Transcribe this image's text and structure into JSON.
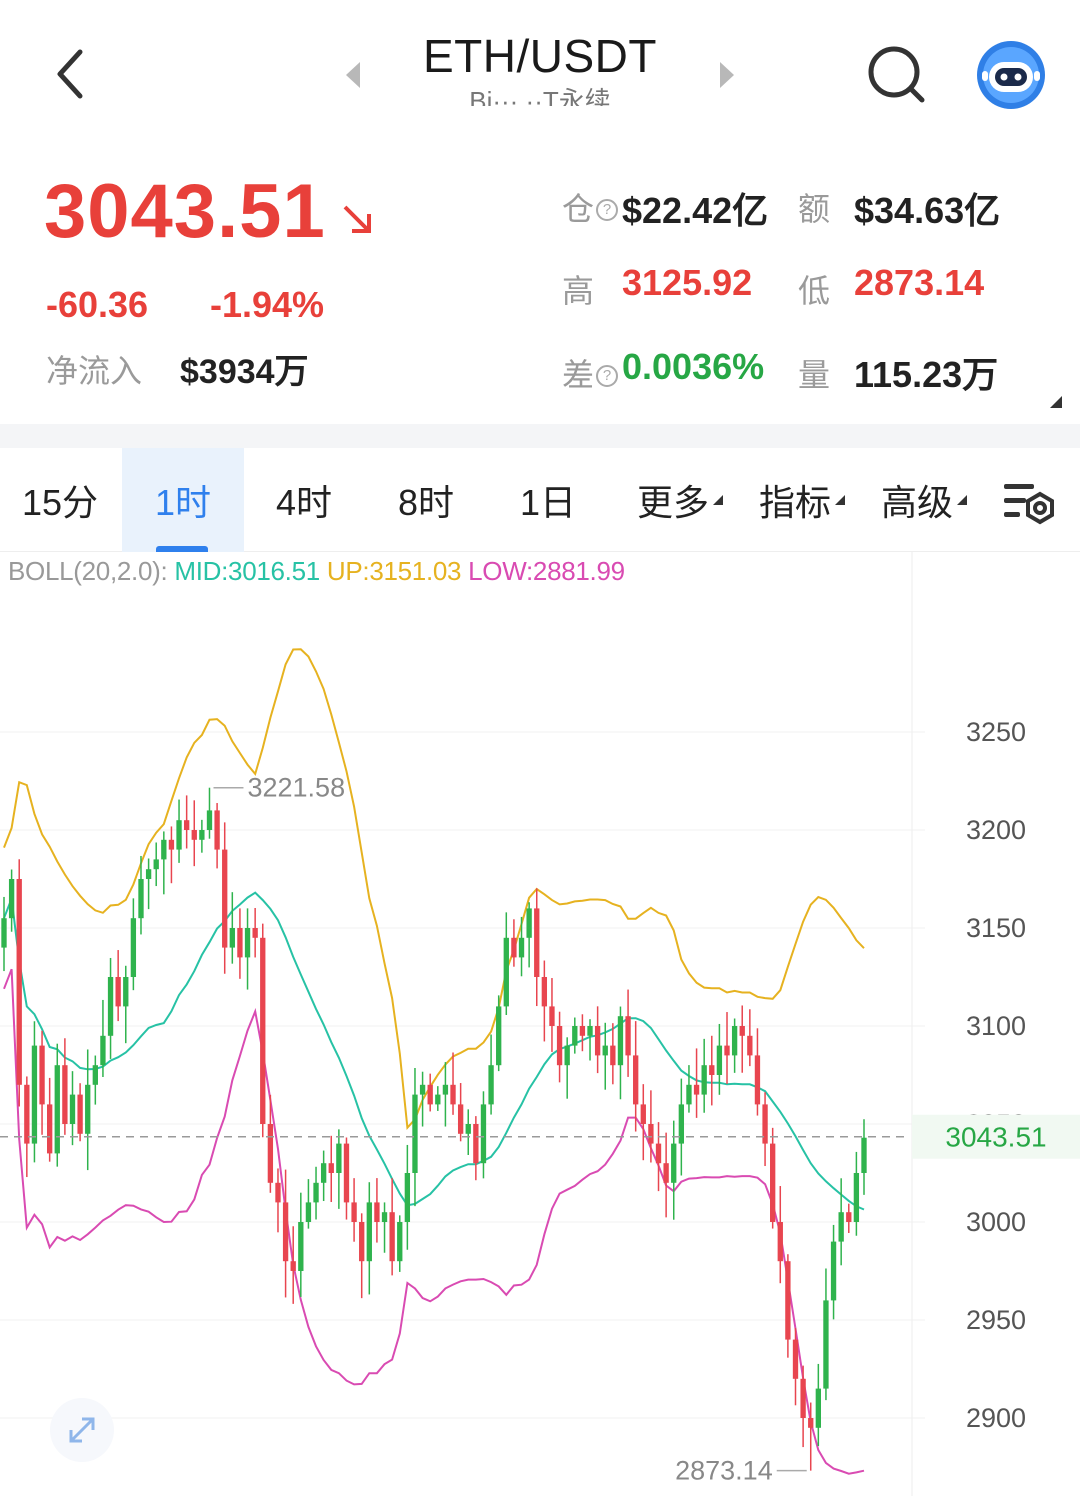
{
  "header": {
    "pair": "ETH/USDT",
    "subtitle": "Bi··· ··T永续"
  },
  "quote": {
    "last_price": "3043.51",
    "change": "-60.36",
    "change_pct": "-1.94%",
    "net_inflow_label": "净流入",
    "net_inflow_value": "$3934万",
    "open_interest_label": "仓",
    "open_interest_value": "$22.42亿",
    "turnover_label": "额",
    "turnover_value": "$34.63亿",
    "high_label": "高",
    "high_value": "3125.92",
    "low_label": "低",
    "low_value": "2873.14",
    "funding_label": "差",
    "funding_value": "0.0036%",
    "volume_label": "量",
    "volume_value": "115.23万"
  },
  "tabs": {
    "items": [
      "15分",
      "1时",
      "4时",
      "8时",
      "1日",
      "更多",
      "指标",
      "高级"
    ],
    "active": "1时"
  },
  "indicator": {
    "label": "BOLL(20,2.0):",
    "mid": "MID:3016.51",
    "up": "UP:3151.03",
    "low": "LOW:2881.99"
  },
  "colors": {
    "up_candle": "#2fb34d",
    "down_candle": "#e8454f",
    "boll_mid": "#27c2a5",
    "boll_up": "#e6b220",
    "boll_low": "#d94bb2",
    "accent": "#2f80ed",
    "price_red": "#e8403a",
    "price_green": "#27a745"
  },
  "chart_data": {
    "type": "candlestick",
    "interval": "1时",
    "y_ticks": [
      3250,
      3200,
      3150,
      3100,
      3050,
      3000,
      2950,
      2900
    ],
    "ylim": [
      2870,
      3300
    ],
    "current_price": 3043.51,
    "current_price_label": "3043.51",
    "max_marker": 3221.58,
    "max_marker_label": "3221.58",
    "min_marker": 2873.14,
    "min_marker_label": "2873.14",
    "grid": true,
    "closes": [
      3155,
      3175,
      3070,
      3040,
      3090,
      3060,
      3035,
      3080,
      3050,
      3065,
      3045,
      3070,
      3080,
      3095,
      3125,
      3110,
      3125,
      3155,
      3175,
      3180,
      3185,
      3195,
      3190,
      3205,
      3200,
      3195,
      3200,
      3210,
      3190,
      3140,
      3150,
      3135,
      3150,
      3145,
      3050,
      3020,
      3010,
      2980,
      2975,
      3000,
      3010,
      3020,
      3030,
      3025,
      3040,
      3010,
      3000,
      2980,
      3010,
      3000,
      3005,
      2980,
      3000,
      3025,
      3065,
      3070,
      3060,
      3065,
      3070,
      3060,
      3045,
      3050,
      3030,
      3060,
      3080,
      3110,
      3145,
      3135,
      3145,
      3160,
      3125,
      3110,
      3100,
      3080,
      3090,
      3100,
      3095,
      3100,
      3085,
      3090,
      3080,
      3105,
      3085,
      3060,
      3050,
      3040,
      3030,
      3020,
      3040,
      3060,
      3070,
      3065,
      3080,
      3075,
      3090,
      3085,
      3100,
      3095,
      3085,
      3060,
      3040,
      3000,
      2980,
      2940,
      2920,
      2900,
      2895,
      2915,
      2960,
      2990,
      3005,
      3000,
      3025,
      3043
    ]
  }
}
